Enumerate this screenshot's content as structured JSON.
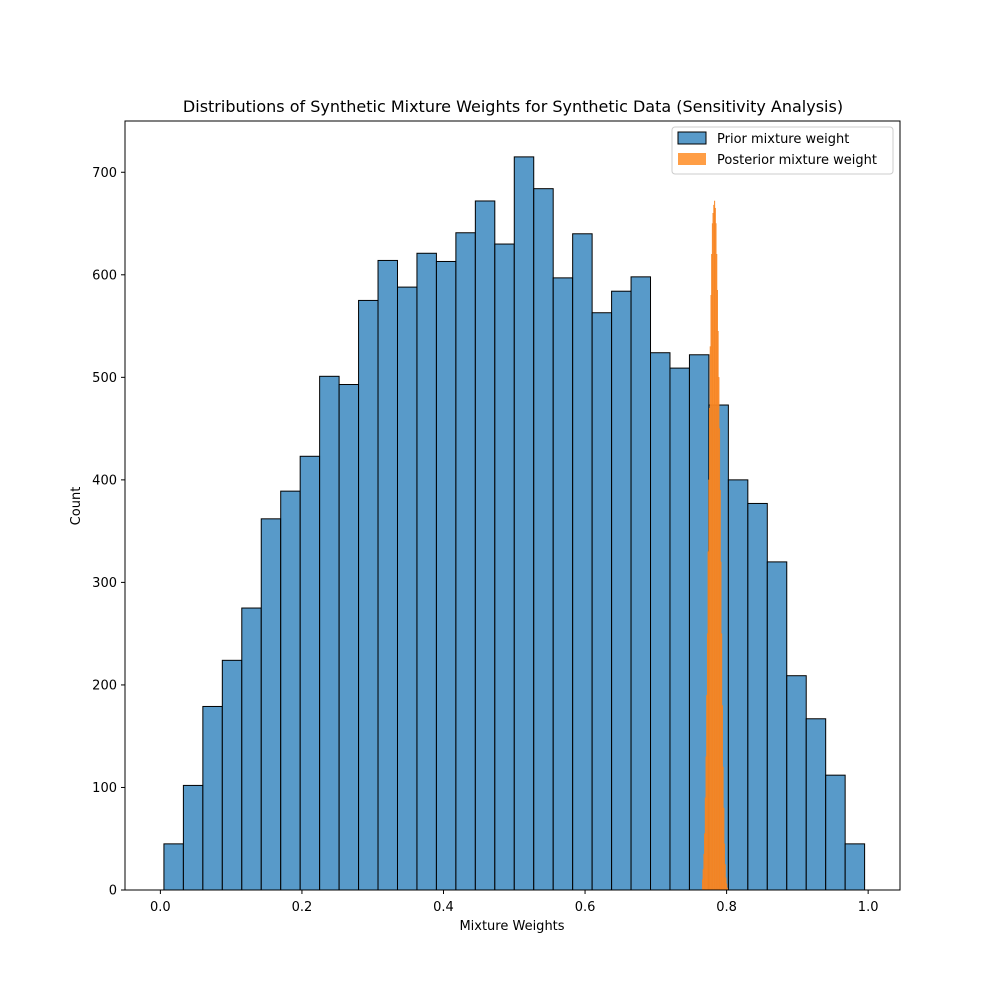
{
  "chart_data": {
    "type": "histogram",
    "title": "Distributions of Synthetic Mixture Weights for Synthetic Data (Sensitivity Analysis)",
    "xlabel": "Mixture Weights",
    "ylabel": "Count",
    "xlim": [
      -0.05,
      1.045
    ],
    "ylim": [
      0,
      750
    ],
    "xticks": [
      0.0,
      0.2,
      0.4,
      0.6,
      0.8,
      1.0
    ],
    "xtick_labels": [
      "0.0",
      "0.2",
      "0.4",
      "0.6",
      "0.8",
      "1.0"
    ],
    "yticks": [
      0,
      100,
      200,
      300,
      400,
      500,
      600,
      700
    ],
    "ytick_labels": [
      "0",
      "100",
      "200",
      "300",
      "400",
      "500",
      "600",
      "700"
    ],
    "grid": false,
    "legend_position": "top-right",
    "series": [
      {
        "name": "Prior mixture weight",
        "color": "#3b88bf",
        "edge_color": "#000000",
        "bin_start": 0.005,
        "bin_width": 0.0275,
        "values": [
          45,
          102,
          179,
          224,
          275,
          362,
          389,
          423,
          501,
          493,
          575,
          614,
          588,
          621,
          613,
          641,
          672,
          630,
          715,
          684,
          597,
          640,
          563,
          584,
          598,
          524,
          509,
          522,
          473,
          400,
          377,
          320,
          209,
          167,
          112,
          45
        ]
      },
      {
        "name": "Posterior mixture weight",
        "color": "#ff8d26",
        "edge_color": "#f58220",
        "bin_start": 0.7655,
        "bin_width": 0.001,
        "values": [
          10,
          20,
          35,
          55,
          90,
          130,
          190,
          250,
          330,
          400,
          470,
          530,
          580,
          620,
          650,
          660,
          668,
          672,
          665,
          650,
          620,
          585,
          545,
          500,
          450,
          390,
          320,
          250,
          180,
          120,
          80,
          45,
          25,
          12,
          6,
          2
        ]
      }
    ]
  }
}
